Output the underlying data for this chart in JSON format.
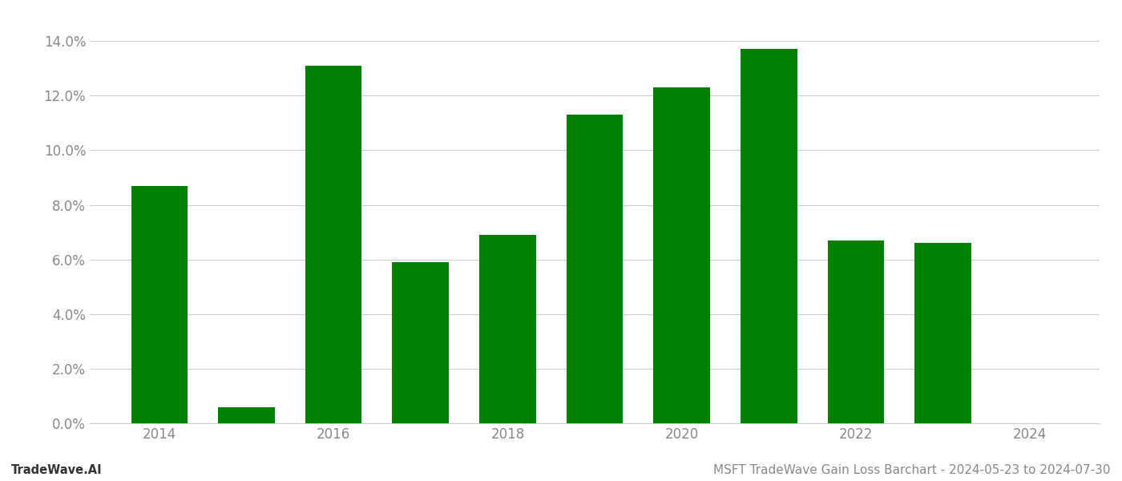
{
  "years": [
    2014,
    2015,
    2016,
    2017,
    2018,
    2019,
    2020,
    2021,
    2022,
    2023,
    2024
  ],
  "values": [
    0.087,
    0.006,
    0.131,
    0.059,
    0.069,
    0.113,
    0.123,
    0.137,
    0.067,
    0.066,
    0.0
  ],
  "bar_color": "#008000",
  "ylim": [
    0,
    0.148
  ],
  "yticks": [
    0.0,
    0.02,
    0.04,
    0.06,
    0.08,
    0.1,
    0.12,
    0.14
  ],
  "xticks": [
    2014,
    2016,
    2018,
    2020,
    2022,
    2024
  ],
  "title": "MSFT TradeWave Gain Loss Barchart - 2024-05-23 to 2024-07-30",
  "footer_left": "TradeWave.AI",
  "background_color": "#ffffff",
  "grid_color": "#cccccc",
  "tick_label_color": "#888888",
  "footer_color": "#333333",
  "title_color": "#888888",
  "bar_width": 0.65,
  "title_fontsize": 11,
  "footer_fontsize": 10.5,
  "tick_fontsize": 12,
  "xlim": [
    2013.2,
    2024.8
  ]
}
